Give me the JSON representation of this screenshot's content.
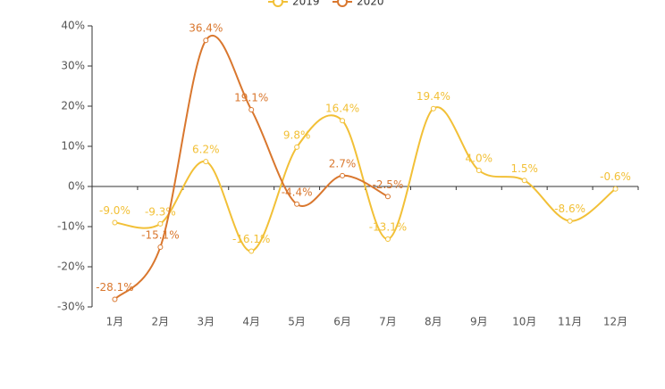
{
  "chart_data": {
    "type": "line",
    "categories": [
      "1月",
      "2月",
      "3月",
      "4月",
      "5月",
      "6月",
      "7月",
      "8月",
      "9月",
      "10月",
      "11月",
      "12月"
    ],
    "series": [
      {
        "name": "2019",
        "color": "#f2c037",
        "values": [
          -9.0,
          -9.3,
          6.2,
          -16.1,
          9.8,
          16.4,
          -13.1,
          19.4,
          4.0,
          1.5,
          -8.6,
          -0.6
        ],
        "value_labels": [
          "-9.0%",
          "-9.3%",
          "6.2%",
          "-16.1%",
          "9.8%",
          "16.4%",
          "-13.1%",
          "19.4%",
          "4.0%",
          "1.5%",
          "-8.6%",
          "-0.6%"
        ]
      },
      {
        "name": "2020",
        "color": "#d9772e",
        "values": [
          -28.1,
          -15.1,
          36.4,
          19.1,
          -4.4,
          2.7,
          -2.5,
          null,
          null,
          null,
          null,
          null
        ],
        "value_labels": [
          "-28.1%",
          "-15.1%",
          "36.4%",
          "19.1%",
          "-4.4%",
          "2.7%",
          "-2.5%",
          null,
          null,
          null,
          null,
          null
        ]
      }
    ],
    "ylim": [
      -30,
      40
    ],
    "yticks": [
      {
        "value": -30,
        "label": "-30%"
      },
      {
        "value": -20,
        "label": "-20%"
      },
      {
        "value": -10,
        "label": "-10%"
      },
      {
        "value": 0,
        "label": "0%"
      },
      {
        "value": 10,
        "label": "10%"
      },
      {
        "value": 20,
        "label": "20%"
      },
      {
        "value": 30,
        "label": "30%"
      },
      {
        "value": 40,
        "label": "40%"
      }
    ],
    "smooth": true,
    "legend": "top"
  }
}
